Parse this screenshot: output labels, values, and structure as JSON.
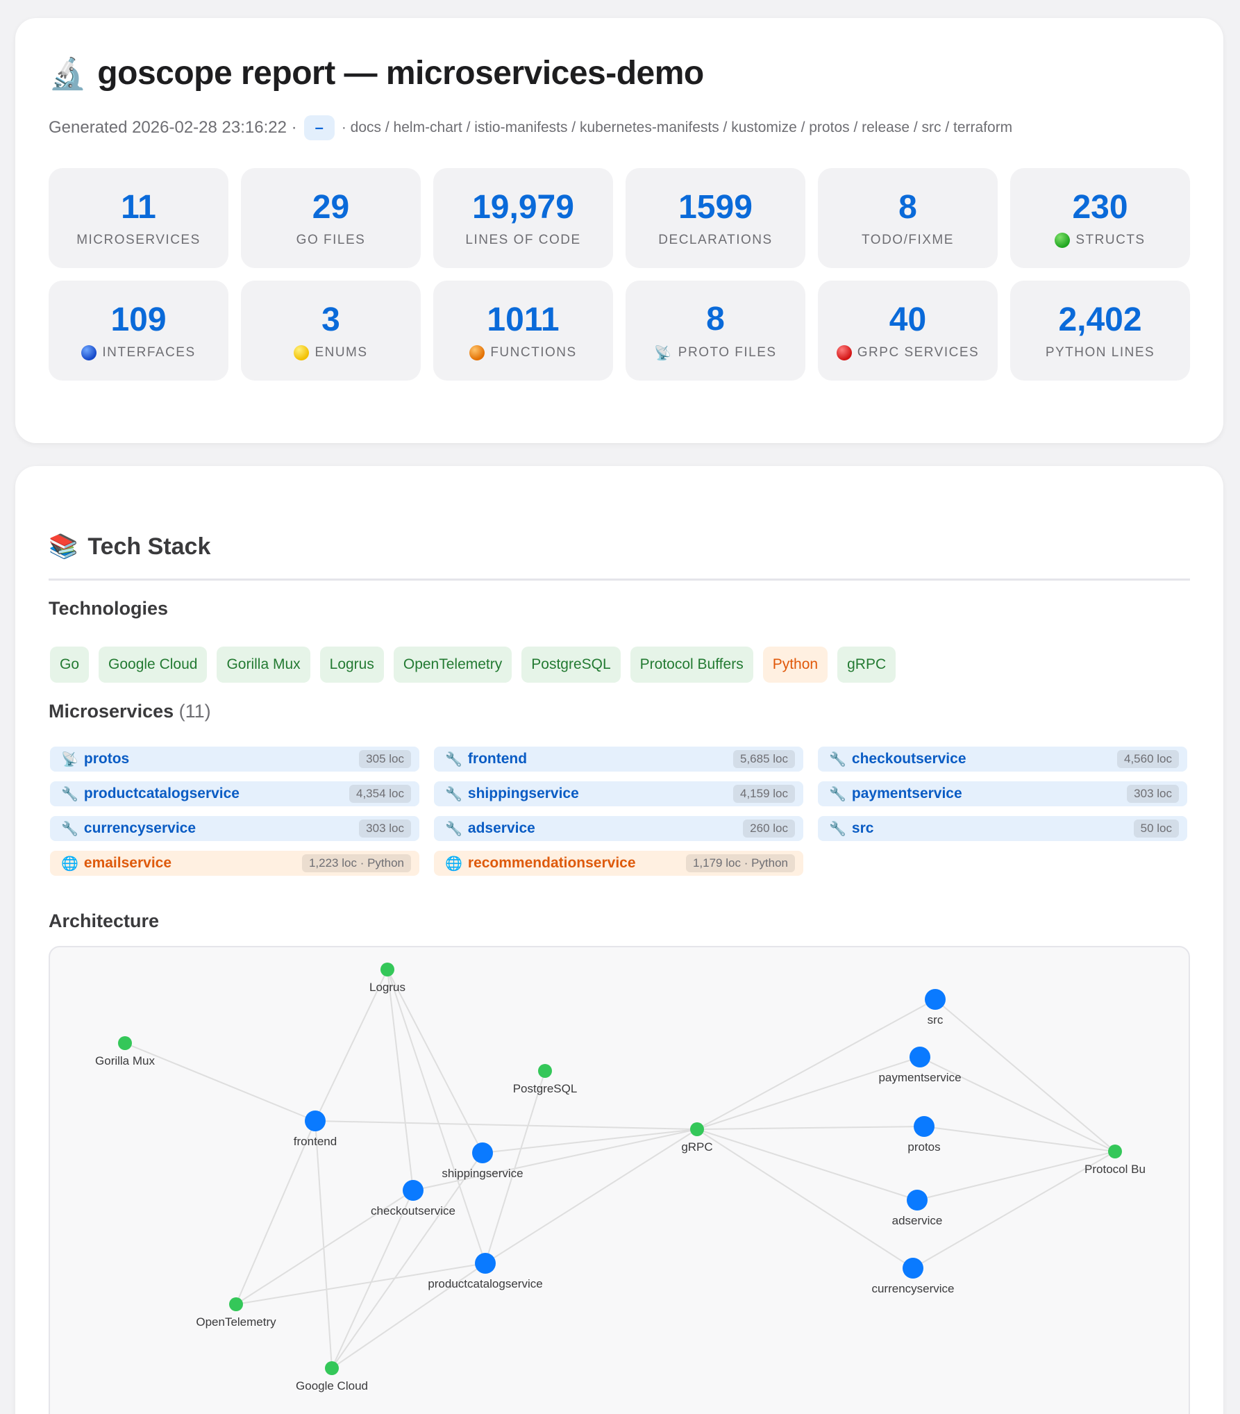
{
  "header": {
    "title_icon": "microscope",
    "title": "goscope report — microservices-demo",
    "generated": "Generated 2026-02-28 23:16:22 ·",
    "pill": "–",
    "dirs": "· docs / helm-chart / istio-manifests / kubernetes-manifests / kustomize / protos / release / src / terraform"
  },
  "stats": [
    {
      "value": "11",
      "label": "MICROSERVICES",
      "icon": ""
    },
    {
      "value": "29",
      "label": "GO FILES",
      "icon": ""
    },
    {
      "value": "19,979",
      "label": "LINES OF CODE",
      "icon": ""
    },
    {
      "value": "1599",
      "label": "DECLARATIONS",
      "icon": ""
    },
    {
      "value": "8",
      "label": "TODO/FIXME",
      "icon": ""
    },
    {
      "value": "230",
      "label": "STRUCTS",
      "icon": "green-circle-icon"
    },
    {
      "value": "109",
      "label": "INTERFACES",
      "icon": "blue-circle-icon"
    },
    {
      "value": "3",
      "label": "ENUMS",
      "icon": "yellow-circle-icon"
    },
    {
      "value": "1011",
      "label": "FUNCTIONS",
      "icon": "orange-circle-icon"
    },
    {
      "value": "8",
      "label": "PROTO FILES",
      "icon": "satellite-antenna-icon"
    },
    {
      "value": "40",
      "label": "GRPC SERVICES",
      "icon": "red-circle-icon"
    },
    {
      "value": "2,402",
      "label": "PYTHON LINES",
      "icon": ""
    }
  ],
  "techstack": {
    "title_icon": "books",
    "title": "Tech Stack",
    "technologies_heading": "Technologies",
    "technologies": [
      {
        "name": "Go",
        "kind": "go"
      },
      {
        "name": "Google Cloud",
        "kind": "go"
      },
      {
        "name": "Gorilla Mux",
        "kind": "go"
      },
      {
        "name": "Logrus",
        "kind": "go"
      },
      {
        "name": "OpenTelemetry",
        "kind": "go"
      },
      {
        "name": "PostgreSQL",
        "kind": "go"
      },
      {
        "name": "Protocol Buffers",
        "kind": "go"
      },
      {
        "name": "Python",
        "kind": "py"
      },
      {
        "name": "gRPC",
        "kind": "go"
      }
    ],
    "microservices_heading": "Microservices",
    "microservices_count": "(11)",
    "microservices": [
      {
        "icon": "satellite-antenna",
        "name": "protos",
        "loc": "305 loc",
        "kind": "go"
      },
      {
        "icon": "wrench",
        "name": "frontend",
        "loc": "5,685 loc",
        "kind": "go"
      },
      {
        "icon": "wrench",
        "name": "checkoutservice",
        "loc": "4,560 loc",
        "kind": "go"
      },
      {
        "icon": "wrench",
        "name": "productcatalogservice",
        "loc": "4,354 loc",
        "kind": "go"
      },
      {
        "icon": "wrench",
        "name": "shippingservice",
        "loc": "4,159 loc",
        "kind": "go"
      },
      {
        "icon": "wrench",
        "name": "paymentservice",
        "loc": "303 loc",
        "kind": "go"
      },
      {
        "icon": "wrench",
        "name": "currencyservice",
        "loc": "303 loc",
        "kind": "go"
      },
      {
        "icon": "wrench",
        "name": "adservice",
        "loc": "260 loc",
        "kind": "go"
      },
      {
        "icon": "wrench",
        "name": "src",
        "loc": "50 loc",
        "kind": "go"
      },
      {
        "icon": "globe",
        "name": "emailservice",
        "loc": "1,223 loc · Python",
        "kind": "py"
      },
      {
        "icon": "globe",
        "name": "recommendationservice",
        "loc": "1,179 loc · Python",
        "kind": "py"
      }
    ],
    "architecture_heading": "Architecture"
  },
  "graph": {
    "colors": {
      "service": "#0a7aff",
      "tech": "#34c759",
      "edge": "#dedede",
      "label": "#3a3a3c"
    },
    "nodes": [
      {
        "id": "Logrus",
        "label": "Logrus",
        "type": "tech"
      },
      {
        "id": "GorillaMux",
        "label": "Gorilla Mux",
        "type": "tech"
      },
      {
        "id": "PostgreSQL",
        "label": "PostgreSQL",
        "type": "tech"
      },
      {
        "id": "gRPC",
        "label": "gRPC",
        "type": "tech"
      },
      {
        "id": "ProtocolBuffers",
        "label": "Protocol Bu",
        "type": "tech"
      },
      {
        "id": "OpenTelemetry",
        "label": "OpenTelemetry",
        "type": "tech"
      },
      {
        "id": "GoogleCloud",
        "label": "Google Cloud",
        "type": "tech"
      },
      {
        "id": "frontend",
        "label": "frontend",
        "type": "service"
      },
      {
        "id": "shippingservice",
        "label": "shippingservice",
        "type": "service"
      },
      {
        "id": "checkoutservice",
        "label": "checkoutservice",
        "type": "service"
      },
      {
        "id": "productcatalogservice",
        "label": "productcatalogservice",
        "type": "service"
      },
      {
        "id": "src",
        "label": "src",
        "type": "service"
      },
      {
        "id": "paymentservice",
        "label": "paymentservice",
        "type": "service"
      },
      {
        "id": "protos",
        "label": "protos",
        "type": "service"
      },
      {
        "id": "adservice",
        "label": "adservice",
        "type": "service"
      },
      {
        "id": "currencyservice",
        "label": "currencyservice",
        "type": "service"
      }
    ],
    "edges": [
      [
        "GorillaMux",
        "frontend"
      ],
      [
        "Logrus",
        "frontend"
      ],
      [
        "Logrus",
        "checkoutservice"
      ],
      [
        "Logrus",
        "shippingservice"
      ],
      [
        "Logrus",
        "productcatalogservice"
      ],
      [
        "PostgreSQL",
        "productcatalogservice"
      ],
      [
        "frontend",
        "gRPC"
      ],
      [
        "shippingservice",
        "gRPC"
      ],
      [
        "checkoutservice",
        "gRPC"
      ],
      [
        "productcatalogservice",
        "gRPC"
      ],
      [
        "src",
        "gRPC"
      ],
      [
        "paymentservice",
        "gRPC"
      ],
      [
        "protos",
        "gRPC"
      ],
      [
        "adservice",
        "gRPC"
      ],
      [
        "currencyservice",
        "gRPC"
      ],
      [
        "src",
        "ProtocolBuffers"
      ],
      [
        "paymentservice",
        "ProtocolBuffers"
      ],
      [
        "protos",
        "ProtocolBuffers"
      ],
      [
        "adservice",
        "ProtocolBuffers"
      ],
      [
        "currencyservice",
        "ProtocolBuffers"
      ],
      [
        "frontend",
        "OpenTelemetry"
      ],
      [
        "checkoutservice",
        "OpenTelemetry"
      ],
      [
        "productcatalogservice",
        "OpenTelemetry"
      ],
      [
        "frontend",
        "GoogleCloud"
      ],
      [
        "checkoutservice",
        "GoogleCloud"
      ],
      [
        "shippingservice",
        "GoogleCloud"
      ],
      [
        "productcatalogservice",
        "GoogleCloud"
      ]
    ]
  }
}
